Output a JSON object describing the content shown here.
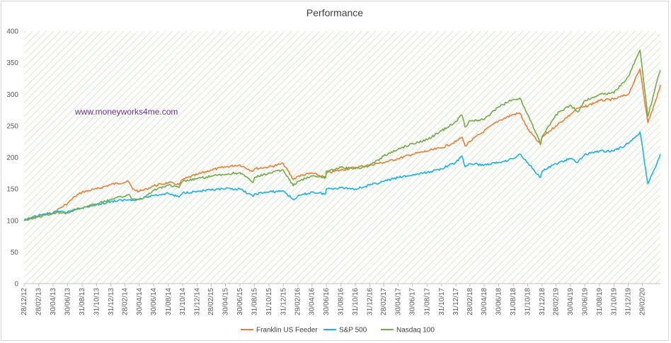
{
  "chart_data": {
    "type": "line",
    "title": "Performance",
    "watermark": "www.moneyworks4me.com",
    "ylim": [
      0,
      400
    ],
    "yticks": [
      0,
      50,
      100,
      150,
      200,
      250,
      300,
      350,
      400
    ],
    "x_range": [
      "2012-12-28",
      "2020-05-15"
    ],
    "xtick_labels": [
      "28/12/12",
      "28/02/13",
      "30/04/13",
      "30/06/13",
      "31/08/13",
      "31/10/13",
      "31/12/13",
      "28/02/14",
      "30/04/14",
      "30/06/14",
      "31/08/14",
      "31/10/14",
      "31/12/14",
      "28/02/15",
      "30/04/15",
      "30/06/15",
      "31/08/15",
      "31/10/15",
      "31/12/15",
      "29/02/16",
      "30/04/16",
      "30/06/16",
      "31/08/16",
      "31/10/16",
      "31/12/16",
      "28/02/17",
      "30/04/17",
      "30/06/17",
      "31/08/17",
      "31/10/17",
      "31/12/17",
      "28/02/18",
      "30/04/18",
      "30/06/18",
      "31/08/18",
      "31/10/18",
      "31/12/18",
      "28/02/19",
      "30/04/19",
      "30/06/19",
      "31/08/19",
      "31/10/19",
      "31/12/19",
      "29/02/20"
    ],
    "grid": false,
    "background": "diagonal hatch",
    "legend_position": "bottom",
    "series": [
      {
        "name": "Franklin US Feeder",
        "color": "#ed7d31",
        "x": [
          "2012-12-28",
          "2013-02-28",
          "2013-04-30",
          "2013-05-31",
          "2013-06-30",
          "2013-07-31",
          "2013-08-31",
          "2013-10-31",
          "2013-12-31",
          "2014-03-15",
          "2014-04-01",
          "2014-04-30",
          "2014-05-31",
          "2014-06-30",
          "2014-08-31",
          "2014-10-15",
          "2014-10-31",
          "2014-12-31",
          "2015-02-28",
          "2015-04-30",
          "2015-06-30",
          "2015-08-25",
          "2015-08-31",
          "2015-10-31",
          "2015-12-31",
          "2016-02-11",
          "2016-02-29",
          "2016-04-30",
          "2016-06-27",
          "2016-06-30",
          "2016-08-31",
          "2016-10-31",
          "2016-12-31",
          "2017-02-28",
          "2017-04-30",
          "2017-06-30",
          "2017-08-31",
          "2017-10-31",
          "2017-12-31",
          "2018-01-26",
          "2018-02-08",
          "2018-02-28",
          "2018-04-30",
          "2018-06-30",
          "2018-08-31",
          "2018-09-28",
          "2018-10-31",
          "2018-12-24",
          "2018-12-31",
          "2019-02-28",
          "2019-04-30",
          "2019-05-31",
          "2019-06-30",
          "2019-08-31",
          "2019-10-31",
          "2019-12-31",
          "2020-02-19",
          "2020-03-23",
          "2020-04-30",
          "2020-05-15"
        ],
        "values": [
          100,
          107,
          112,
          120,
          127,
          138,
          145,
          150,
          157,
          162,
          150,
          146,
          150,
          155,
          160,
          157,
          165,
          173,
          180,
          185,
          188,
          178,
          182,
          185,
          190,
          165,
          170,
          175,
          168,
          175,
          180,
          184,
          188,
          192,
          198,
          205,
          210,
          215,
          225,
          232,
          218,
          225,
          242,
          258,
          268,
          270,
          245,
          220,
          232,
          250,
          268,
          278,
          280,
          290,
          292,
          300,
          340,
          255,
          295,
          315
        ]
      },
      {
        "name": "S&P 500",
        "color": "#1ab0e8",
        "x": [
          "2012-12-28",
          "2013-02-28",
          "2013-04-30",
          "2013-05-31",
          "2013-06-30",
          "2013-07-31",
          "2013-08-31",
          "2013-10-31",
          "2013-12-31",
          "2014-03-15",
          "2014-04-01",
          "2014-04-30",
          "2014-05-31",
          "2014-06-30",
          "2014-08-31",
          "2014-10-15",
          "2014-10-31",
          "2014-12-31",
          "2015-02-28",
          "2015-04-30",
          "2015-06-30",
          "2015-08-25",
          "2015-08-31",
          "2015-10-31",
          "2015-12-31",
          "2016-02-11",
          "2016-02-29",
          "2016-04-30",
          "2016-06-27",
          "2016-06-30",
          "2016-08-31",
          "2016-10-31",
          "2016-12-31",
          "2017-02-28",
          "2017-04-30",
          "2017-06-30",
          "2017-08-31",
          "2017-10-31",
          "2017-12-31",
          "2018-01-26",
          "2018-02-08",
          "2018-02-28",
          "2018-04-30",
          "2018-06-30",
          "2018-08-31",
          "2018-09-28",
          "2018-10-31",
          "2018-12-24",
          "2018-12-31",
          "2019-02-28",
          "2019-04-30",
          "2019-05-31",
          "2019-06-30",
          "2019-08-31",
          "2019-10-31",
          "2019-12-31",
          "2020-02-19",
          "2020-03-23",
          "2020-04-30",
          "2020-05-15"
        ],
        "values": [
          100,
          108,
          112,
          114,
          113,
          118,
          120,
          125,
          130,
          133,
          133,
          134,
          137,
          140,
          143,
          137,
          144,
          146,
          148,
          150,
          150,
          138,
          142,
          145,
          147,
          133,
          138,
          145,
          142,
          150,
          152,
          150,
          156,
          162,
          168,
          172,
          176,
          182,
          192,
          202,
          185,
          190,
          188,
          192,
          198,
          205,
          192,
          168,
          178,
          190,
          198,
          192,
          205,
          210,
          210,
          222,
          240,
          158,
          190,
          205
        ]
      },
      {
        "name": "Nasdaq 100",
        "color": "#70ad47",
        "x": [
          "2012-12-28",
          "2013-02-28",
          "2013-04-30",
          "2013-05-31",
          "2013-06-30",
          "2013-07-31",
          "2013-08-31",
          "2013-10-31",
          "2013-12-31",
          "2014-03-15",
          "2014-04-01",
          "2014-04-30",
          "2014-05-31",
          "2014-06-30",
          "2014-08-31",
          "2014-10-15",
          "2014-10-31",
          "2014-12-31",
          "2015-02-28",
          "2015-04-30",
          "2015-06-30",
          "2015-08-25",
          "2015-08-31",
          "2015-10-31",
          "2015-12-31",
          "2016-02-11",
          "2016-02-29",
          "2016-04-30",
          "2016-06-27",
          "2016-06-30",
          "2016-08-31",
          "2016-10-31",
          "2016-12-31",
          "2017-02-28",
          "2017-04-30",
          "2017-06-30",
          "2017-08-31",
          "2017-10-31",
          "2017-12-31",
          "2018-01-26",
          "2018-02-08",
          "2018-02-28",
          "2018-04-30",
          "2018-06-30",
          "2018-08-31",
          "2018-09-28",
          "2018-10-31",
          "2018-12-24",
          "2018-12-31",
          "2019-02-28",
          "2019-04-30",
          "2019-05-31",
          "2019-06-30",
          "2019-08-31",
          "2019-10-31",
          "2019-12-31",
          "2020-02-19",
          "2020-03-23",
          "2020-04-30",
          "2020-05-15"
        ],
        "values": [
          100,
          106,
          111,
          113,
          112,
          117,
          120,
          126,
          133,
          141,
          134,
          133,
          140,
          148,
          156,
          152,
          162,
          166,
          170,
          173,
          176,
          160,
          168,
          175,
          180,
          155,
          162,
          170,
          168,
          178,
          184,
          182,
          187,
          202,
          213,
          222,
          228,
          242,
          257,
          267,
          248,
          258,
          260,
          280,
          292,
          294,
          268,
          222,
          233,
          268,
          283,
          272,
          290,
          300,
          302,
          328,
          370,
          265,
          320,
          338
        ]
      }
    ]
  }
}
